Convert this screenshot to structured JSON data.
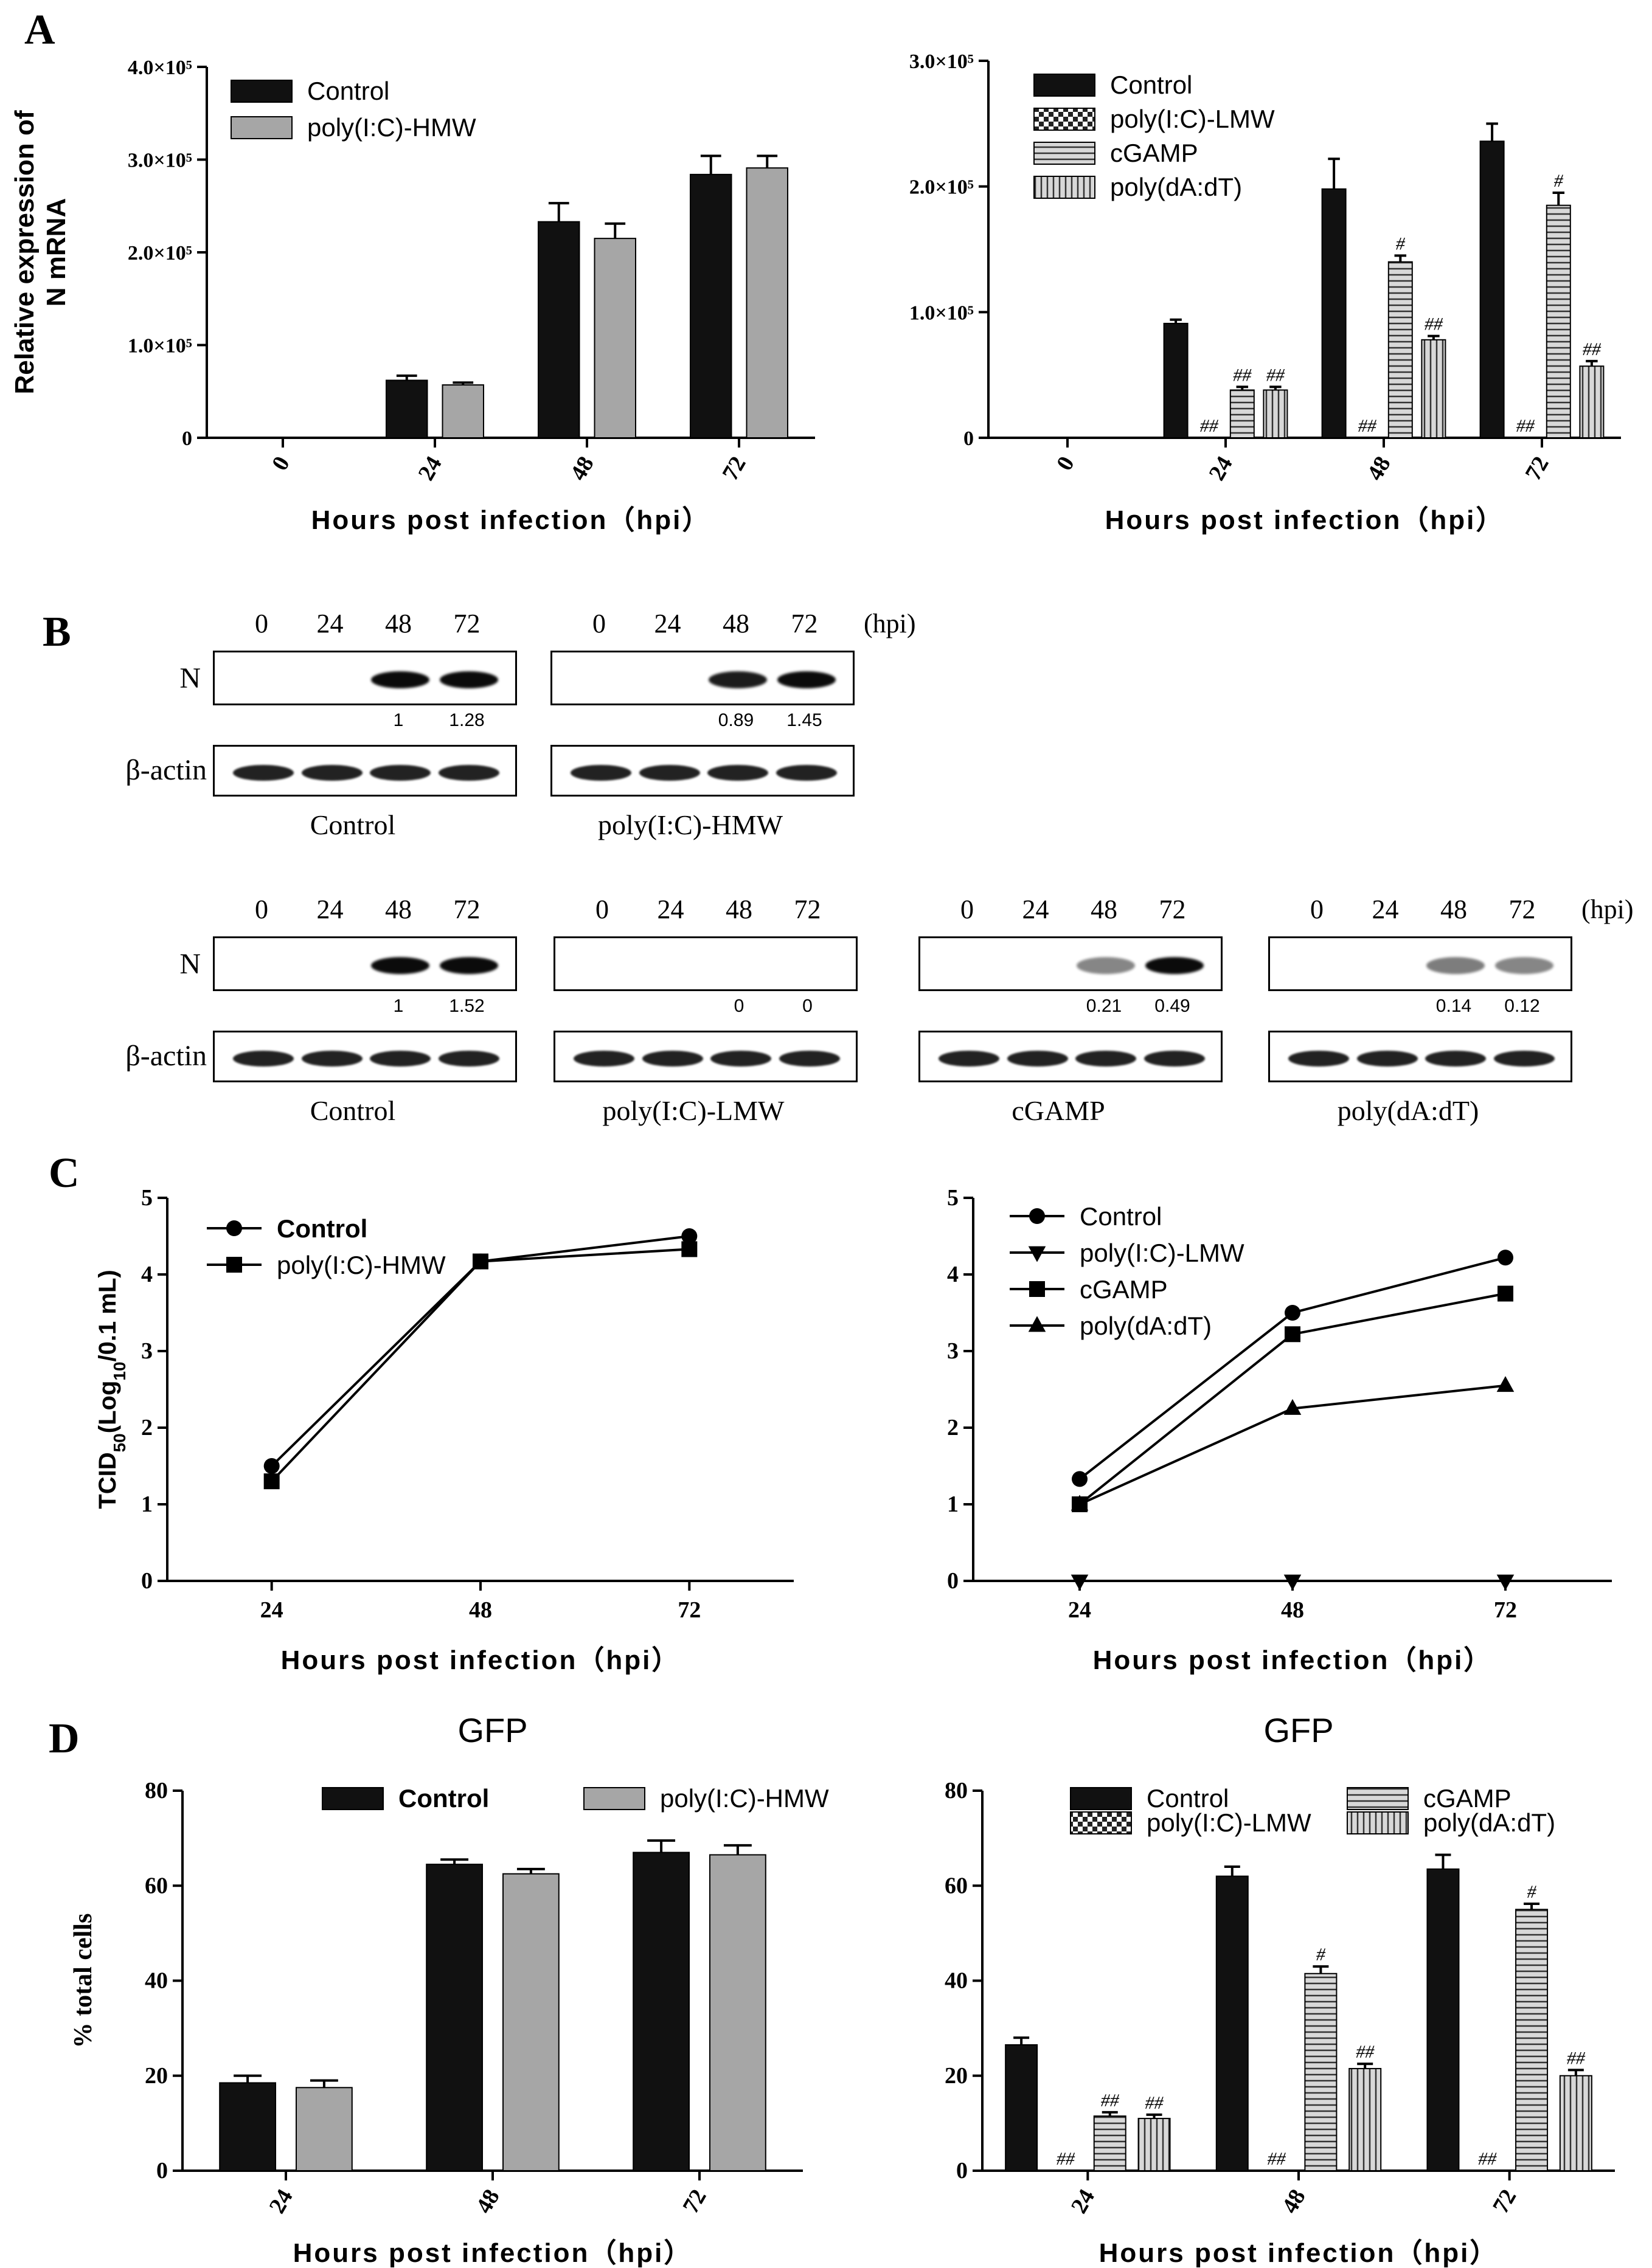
{
  "panel_letters": [
    "A",
    "B",
    "C",
    "D"
  ],
  "colors": {
    "black": "#111111",
    "gray": "#a6a6a6",
    "band": "#0b0b0b"
  },
  "legend_patterns": [
    "solid-black",
    "checker",
    "horizontal-stripes",
    "vertical-stripes"
  ],
  "chart_data": [
    {
      "id": "A-left",
      "type": "bar",
      "title": "",
      "xlabel": "Hours post infection（hpi）",
      "ylabel_lines": [
        "Relative expression of",
        "N mRNA"
      ],
      "categories": [
        "0",
        "24",
        "48",
        "72"
      ],
      "ylim": [
        0,
        400000
      ],
      "yticks": [
        0,
        100000,
        200000,
        300000,
        400000
      ],
      "ytick_labels": [
        "0",
        "1.0×10⁵",
        "2.0×10⁵",
        "3.0×10⁵",
        "4.0×10⁵"
      ],
      "legend_position": "top-left",
      "series": [
        {
          "name": "Control",
          "pattern": "solid-black",
          "values": [
            0,
            62000,
            233000,
            284000
          ],
          "errors": [
            0,
            5000,
            20000,
            20000
          ],
          "marks": [
            "",
            "",
            "",
            ""
          ]
        },
        {
          "name": "poly(I:C)-HMW",
          "pattern": "solid-gray",
          "values": [
            0,
            57000,
            215000,
            291000
          ],
          "errors": [
            0,
            2500,
            16000,
            13000
          ],
          "marks": [
            "",
            "",
            "",
            ""
          ]
        }
      ]
    },
    {
      "id": "A-right",
      "type": "bar",
      "title": "",
      "xlabel": "Hours post infection（hpi）",
      "ylabel_lines": [],
      "categories": [
        "0",
        "24",
        "48",
        "72"
      ],
      "ylim": [
        0,
        300000
      ],
      "yticks": [
        0,
        100000,
        200000,
        300000
      ],
      "ytick_labels": [
        "0",
        "1.0×10⁵",
        "2.0×10⁵",
        "3.0×10⁵"
      ],
      "legend_position": "top-left",
      "series": [
        {
          "name": "Control",
          "pattern": "solid-black",
          "values": [
            0,
            91000,
            198000,
            236000
          ],
          "errors": [
            0,
            3000,
            24000,
            14000
          ],
          "marks": [
            "",
            "",
            "",
            ""
          ]
        },
        {
          "name": "poly(I:C)-LMW",
          "pattern": "checker",
          "values": [
            0,
            0,
            0,
            0
          ],
          "errors": [
            0,
            0,
            0,
            0
          ],
          "marks": [
            "",
            "##",
            "##",
            "##"
          ]
        },
        {
          "name": "cGAMP",
          "pattern": "horizontal-stripes",
          "values": [
            0,
            38000,
            140000,
            185000
          ],
          "errors": [
            0,
            2500,
            5000,
            10000
          ],
          "marks": [
            "",
            "##",
            "#",
            "#"
          ]
        },
        {
          "name": "poly(dA:dT)",
          "pattern": "vertical-stripes",
          "values": [
            0,
            38000,
            78000,
            57000
          ],
          "errors": [
            0,
            2500,
            3000,
            4000
          ],
          "marks": [
            "",
            "##",
            "##",
            "##"
          ]
        }
      ]
    },
    {
      "id": "C-left",
      "type": "line",
      "title": "",
      "xlabel": "Hours post infection（hpi）",
      "ylabel": "TCID",
      "ylabel_sub": "50",
      "ylabel_tail": "(Log",
      "ylabel_sub2": "10",
      "ylabel_end": "/0.1 mL)",
      "x": [
        "24",
        "48",
        "72"
      ],
      "ylim": [
        0,
        5
      ],
      "yticks": [
        0,
        1,
        2,
        3,
        4,
        5
      ],
      "legend_position": "top-left",
      "series": [
        {
          "name": "Control",
          "marker": "circle",
          "values": [
            1.5,
            4.17,
            4.5
          ]
        },
        {
          "name": "poly(I:C)-HMW",
          "marker": "square",
          "values": [
            1.3,
            4.17,
            4.33
          ]
        }
      ]
    },
    {
      "id": "C-right",
      "type": "line",
      "title": "",
      "xlabel": "Hours post infection（hpi）",
      "x": [
        "24",
        "48",
        "72"
      ],
      "ylim": [
        0,
        5
      ],
      "yticks": [
        0,
        1,
        2,
        3,
        4,
        5
      ],
      "legend_position": "top-left",
      "series": [
        {
          "name": "Control",
          "marker": "circle",
          "values": [
            1.33,
            3.5,
            4.22
          ]
        },
        {
          "name": "poly(I:C)-LMW",
          "marker": "triangle-down",
          "values": [
            0,
            0,
            0
          ]
        },
        {
          "name": "cGAMP",
          "marker": "square",
          "values": [
            1.0,
            3.22,
            3.75
          ]
        },
        {
          "name": "poly(dA:dT)",
          "marker": "triangle-up",
          "values": [
            1.0,
            2.25,
            2.55
          ]
        }
      ]
    },
    {
      "id": "D-left",
      "type": "bar",
      "title": "GFP",
      "xlabel": "Hours post infection（hpi）",
      "ylabel": "% total cells",
      "categories": [
        "24",
        "48",
        "72"
      ],
      "ylim": [
        0,
        80
      ],
      "yticks": [
        0,
        20,
        40,
        60,
        80
      ],
      "legend_position": "top-center",
      "series": [
        {
          "name": "Control",
          "pattern": "solid-black",
          "values": [
            18.5,
            64.5,
            67
          ],
          "errors": [
            1.5,
            1.0,
            2.5
          ],
          "marks": [
            "",
            "",
            ""
          ]
        },
        {
          "name": "poly(I:C)-HMW",
          "pattern": "solid-gray",
          "values": [
            17.5,
            62.5,
            66.5
          ],
          "errors": [
            1.5,
            1.0,
            2.0
          ],
          "marks": [
            "",
            "",
            ""
          ]
        }
      ]
    },
    {
      "id": "D-right",
      "type": "bar",
      "title": "GFP",
      "xlabel": "Hours post infection（hpi）",
      "categories": [
        "24",
        "48",
        "72"
      ],
      "ylim": [
        0,
        80
      ],
      "yticks": [
        0,
        20,
        40,
        60,
        80
      ],
      "legend_position": "top-right",
      "series": [
        {
          "name": "Control",
          "pattern": "solid-black",
          "values": [
            26.5,
            62,
            63.5
          ],
          "errors": [
            1.5,
            2.0,
            3.0
          ],
          "marks": [
            "",
            "",
            ""
          ]
        },
        {
          "name": "poly(I:C)-LMW",
          "pattern": "checker",
          "values": [
            0,
            0,
            0
          ],
          "errors": [
            0,
            0,
            0
          ],
          "marks": [
            "##",
            "##",
            "##"
          ]
        },
        {
          "name": "cGAMP",
          "pattern": "horizontal-stripes",
          "values": [
            11.5,
            41.5,
            55
          ],
          "errors": [
            0.8,
            1.5,
            1.2
          ],
          "marks": [
            "##",
            "#",
            "#"
          ]
        },
        {
          "name": "poly(dA:dT)",
          "pattern": "vertical-stripes",
          "values": [
            11,
            21.5,
            20
          ],
          "errors": [
            0.8,
            1.0,
            1.2
          ],
          "marks": [
            "##",
            "##",
            "##"
          ]
        }
      ]
    }
  ],
  "western_blots": {
    "lanes": [
      "0",
      "24",
      "48",
      "72"
    ],
    "hpi_label": "(hpi)",
    "row_labels": [
      "N",
      "β-actin"
    ],
    "groups": [
      {
        "name": "Control",
        "n_intensity": [
          0,
          0,
          1,
          1
        ],
        "quant": [
          "",
          "",
          "1",
          "1.28"
        ]
      },
      {
        "name": "poly(I:C)-HMW",
        "n_intensity": [
          0,
          0,
          0.85,
          0.95
        ],
        "quant": [
          "",
          "",
          "0.89",
          "1.45"
        ]
      },
      {
        "name": "Control",
        "n_intensity": [
          0,
          0,
          1,
          1
        ],
        "quant": [
          "",
          "",
          "1",
          "1.52"
        ]
      },
      {
        "name": "poly(I:C)-LMW",
        "n_intensity": [
          0,
          0,
          0,
          0
        ],
        "quant": [
          "",
          "",
          "0",
          "0"
        ]
      },
      {
        "name": "cGAMP",
        "n_intensity": [
          0,
          0,
          0.3,
          1
        ],
        "quant": [
          "",
          "",
          "0.21",
          "0.49"
        ]
      },
      {
        "name": "poly(dA:dT)",
        "n_intensity": [
          0,
          0,
          0.35,
          0.3
        ],
        "quant": [
          "",
          "",
          "0.14",
          "0.12"
        ]
      }
    ]
  }
}
